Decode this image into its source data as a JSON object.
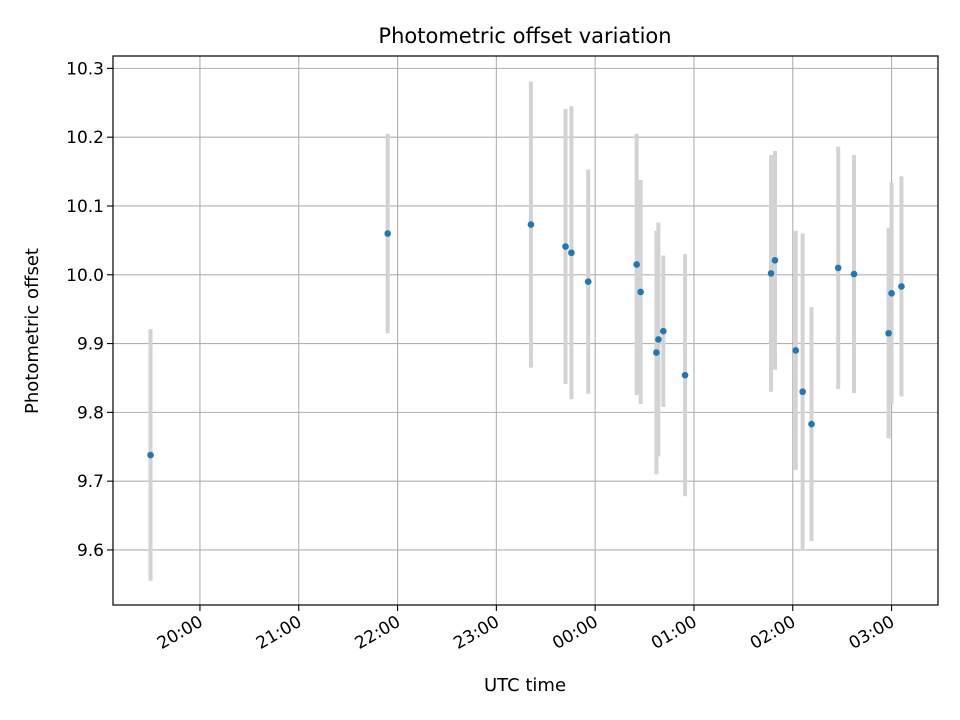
{
  "chart_data": {
    "type": "scatter",
    "title": "Photometric offset variation",
    "xlabel": "UTC time",
    "ylabel": "Photometric offset",
    "x_tick_labels": [
      "20:00",
      "21:00",
      "22:00",
      "23:00",
      "00:00",
      "01:00",
      "02:00",
      "03:00"
    ],
    "x_ticks_hours": [
      20,
      21,
      22,
      23,
      24,
      25,
      26,
      27
    ],
    "y_ticks": [
      9.6,
      9.7,
      9.8,
      9.9,
      10.0,
      10.1,
      10.2,
      10.3
    ],
    "y_tick_labels": [
      "9.6",
      "9.7",
      "9.8",
      "9.9",
      "10.0",
      "10.1",
      "10.2",
      "10.3"
    ],
    "xlim_hours": [
      19.12,
      27.47
    ],
    "ylim": [
      9.52,
      10.318
    ],
    "grid": true,
    "point_color": "#1f77b4",
    "errorbar_color": "#d3d3d3",
    "points": [
      {
        "time": "19:30",
        "hour": 19.5,
        "y": 9.738,
        "err": 0.183
      },
      {
        "time": "21:54",
        "hour": 21.9,
        "y": 10.06,
        "err": 0.145
      },
      {
        "time": "23:21",
        "hour": 23.35,
        "y": 10.073,
        "err": 0.208
      },
      {
        "time": "23:42",
        "hour": 23.7,
        "y": 10.041,
        "err": 0.2
      },
      {
        "time": "23:46",
        "hour": 23.76,
        "y": 10.032,
        "err": 0.213
      },
      {
        "time": "23:55",
        "hour": 23.93,
        "y": 9.99,
        "err": 0.163
      },
      {
        "time": "00:25",
        "hour": 24.42,
        "y": 10.015,
        "err": 0.19
      },
      {
        "time": "00:27",
        "hour": 24.46,
        "y": 9.975,
        "err": 0.163
      },
      {
        "time": "00:37",
        "hour": 24.62,
        "y": 9.887,
        "err": 0.177
      },
      {
        "time": "00:38",
        "hour": 24.64,
        "y": 9.906,
        "err": 0.17
      },
      {
        "time": "00:41",
        "hour": 24.69,
        "y": 9.918,
        "err": 0.11
      },
      {
        "time": "00:54",
        "hour": 24.91,
        "y": 9.854,
        "err": 0.176
      },
      {
        "time": "01:47",
        "hour": 25.78,
        "y": 10.002,
        "err": 0.172
      },
      {
        "time": "01:49",
        "hour": 25.82,
        "y": 10.021,
        "err": 0.159
      },
      {
        "time": "02:02",
        "hour": 26.03,
        "y": 9.89,
        "err": 0.174
      },
      {
        "time": "02:06",
        "hour": 26.1,
        "y": 9.83,
        "err": 0.23
      },
      {
        "time": "02:11",
        "hour": 26.19,
        "y": 9.783,
        "err": 0.17
      },
      {
        "time": "02:28",
        "hour": 26.46,
        "y": 10.01,
        "err": 0.176
      },
      {
        "time": "02:37",
        "hour": 26.62,
        "y": 10.001,
        "err": 0.173
      },
      {
        "time": "02:58",
        "hour": 26.97,
        "y": 9.915,
        "err": 0.153
      },
      {
        "time": "03:00",
        "hour": 27.0,
        "y": 9.973,
        "err": 0.161
      },
      {
        "time": "03:06",
        "hour": 27.1,
        "y": 9.983,
        "err": 0.16
      }
    ]
  }
}
